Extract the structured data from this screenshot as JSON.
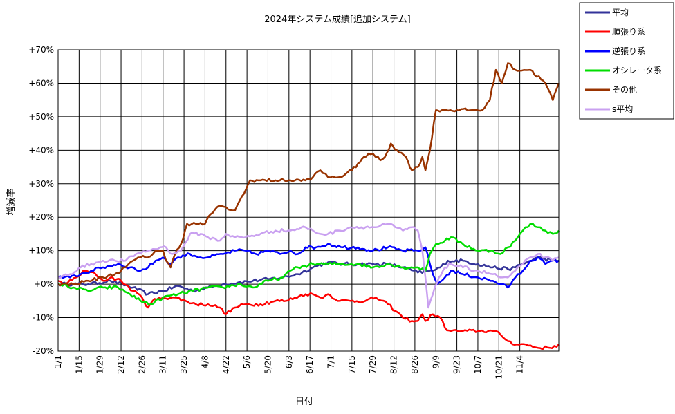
{
  "chart_data": {
    "type": "line",
    "title": "2024年システム成績[追加システム]",
    "xlabel": "日付",
    "ylabel": "増減率",
    "ylim": [
      -20,
      70
    ],
    "y_ticks": [
      "-20%",
      "-10%",
      "+0%",
      "+10%",
      "+20%",
      "+30%",
      "+40%",
      "+50%",
      "+60%",
      "+70%"
    ],
    "x_ticks": [
      "1/1",
      "1/15",
      "1/29",
      "2/12",
      "2/26",
      "3/11",
      "3/25",
      "4/8",
      "4/22",
      "5/6",
      "5/20",
      "6/3",
      "6/17",
      "7/1",
      "7/15",
      "7/29",
      "8/12",
      "8/26",
      "9/9",
      "9/23",
      "10/7",
      "10/21",
      "11/4"
    ],
    "x_range_days": [
      0,
      334
    ],
    "grid": true,
    "legend_position": "right-top",
    "series": [
      {
        "name": "平均",
        "color": "#333399",
        "points": [
          [
            0,
            0
          ],
          [
            10,
            0
          ],
          [
            20,
            0
          ],
          [
            35,
            1
          ],
          [
            50,
            -1
          ],
          [
            60,
            -3
          ],
          [
            70,
            -2
          ],
          [
            80,
            -0.5
          ],
          [
            90,
            -2
          ],
          [
            100,
            -1
          ],
          [
            110,
            0
          ],
          [
            120,
            0.5
          ],
          [
            130,
            1
          ],
          [
            140,
            1.5
          ],
          [
            150,
            2
          ],
          [
            160,
            3
          ],
          [
            170,
            5
          ],
          [
            180,
            6.5
          ],
          [
            190,
            6
          ],
          [
            200,
            6
          ],
          [
            210,
            6
          ],
          [
            220,
            6
          ],
          [
            230,
            5
          ],
          [
            240,
            3.5
          ],
          [
            250,
            4
          ],
          [
            255,
            5
          ],
          [
            260,
            7
          ],
          [
            270,
            7
          ],
          [
            280,
            6
          ],
          [
            290,
            5
          ],
          [
            300,
            4.5
          ],
          [
            305,
            5
          ],
          [
            310,
            6
          ],
          [
            320,
            8
          ],
          [
            330,
            7
          ],
          [
            334,
            7
          ]
        ]
      },
      {
        "name": "順張り系",
        "color": "#ff0000",
        "points": [
          [
            0,
            1
          ],
          [
            5,
            0
          ],
          [
            12,
            2
          ],
          [
            18,
            4
          ],
          [
            25,
            3
          ],
          [
            30,
            1
          ],
          [
            35,
            2
          ],
          [
            42,
            1
          ],
          [
            50,
            -2
          ],
          [
            56,
            -4
          ],
          [
            60,
            -7
          ],
          [
            63,
            -5
          ],
          [
            70,
            -4
          ],
          [
            78,
            -4
          ],
          [
            85,
            -5
          ],
          [
            92,
            -6
          ],
          [
            100,
            -6
          ],
          [
            108,
            -7
          ],
          [
            112,
            -9
          ],
          [
            118,
            -7
          ],
          [
            125,
            -6
          ],
          [
            135,
            -6
          ],
          [
            145,
            -5
          ],
          [
            152,
            -5
          ],
          [
            158,
            -4
          ],
          [
            165,
            -3
          ],
          [
            170,
            -3
          ],
          [
            175,
            -4
          ],
          [
            180,
            -3
          ],
          [
            188,
            -5
          ],
          [
            195,
            -5
          ],
          [
            205,
            -5
          ],
          [
            212,
            -4
          ],
          [
            220,
            -6
          ],
          [
            225,
            -8
          ],
          [
            230,
            -10
          ],
          [
            236,
            -11
          ],
          [
            240,
            -11
          ],
          [
            243,
            -9
          ],
          [
            245,
            -11
          ],
          [
            250,
            -9
          ],
          [
            255,
            -10
          ],
          [
            258,
            -13
          ],
          [
            262,
            -14
          ],
          [
            270,
            -14
          ],
          [
            280,
            -14
          ],
          [
            290,
            -14
          ],
          [
            295,
            -15
          ],
          [
            300,
            -17
          ],
          [
            306,
            -18
          ],
          [
            312,
            -18
          ],
          [
            320,
            -19
          ],
          [
            328,
            -19
          ],
          [
            334,
            -18
          ]
        ]
      },
      {
        "name": "逆張り系",
        "color": "#0000ff",
        "points": [
          [
            0,
            2
          ],
          [
            8,
            2
          ],
          [
            15,
            3
          ],
          [
            22,
            4
          ],
          [
            30,
            5
          ],
          [
            40,
            6
          ],
          [
            48,
            5
          ],
          [
            55,
            4
          ],
          [
            60,
            5
          ],
          [
            65,
            7
          ],
          [
            70,
            8
          ],
          [
            75,
            6
          ],
          [
            80,
            8
          ],
          [
            88,
            9
          ],
          [
            95,
            8
          ],
          [
            100,
            8
          ],
          [
            110,
            9
          ],
          [
            118,
            10
          ],
          [
            125,
            10
          ],
          [
            132,
            9
          ],
          [
            140,
            10
          ],
          [
            148,
            9
          ],
          [
            155,
            10
          ],
          [
            160,
            9
          ],
          [
            165,
            11
          ],
          [
            172,
            11
          ],
          [
            180,
            12
          ],
          [
            190,
            11
          ],
          [
            200,
            11
          ],
          [
            210,
            10
          ],
          [
            220,
            11
          ],
          [
            230,
            10
          ],
          [
            240,
            10
          ],
          [
            245,
            11
          ],
          [
            248,
            6
          ],
          [
            250,
            3
          ],
          [
            253,
            0
          ],
          [
            258,
            2
          ],
          [
            262,
            4
          ],
          [
            270,
            3
          ],
          [
            280,
            2
          ],
          [
            290,
            1
          ],
          [
            295,
            0
          ],
          [
            300,
            -1
          ],
          [
            305,
            2
          ],
          [
            310,
            4
          ],
          [
            315,
            7
          ],
          [
            320,
            8
          ],
          [
            325,
            6
          ],
          [
            330,
            7
          ],
          [
            334,
            7
          ]
        ]
      },
      {
        "name": "オシレータ系",
        "color": "#00dd00",
        "points": [
          [
            0,
            0
          ],
          [
            10,
            -1
          ],
          [
            20,
            -2
          ],
          [
            30,
            -1
          ],
          [
            40,
            -1
          ],
          [
            48,
            -3
          ],
          [
            55,
            -5
          ],
          [
            62,
            -6
          ],
          [
            70,
            -4
          ],
          [
            80,
            -3
          ],
          [
            90,
            -2
          ],
          [
            100,
            -1
          ],
          [
            110,
            -1
          ],
          [
            120,
            0
          ],
          [
            130,
            -1
          ],
          [
            140,
            1
          ],
          [
            150,
            2
          ],
          [
            155,
            4
          ],
          [
            160,
            5
          ],
          [
            170,
            6
          ],
          [
            180,
            6
          ],
          [
            190,
            6
          ],
          [
            200,
            6
          ],
          [
            210,
            5
          ],
          [
            220,
            6
          ],
          [
            230,
            5
          ],
          [
            240,
            5
          ],
          [
            245,
            4
          ],
          [
            248,
            9
          ],
          [
            252,
            12
          ],
          [
            258,
            13
          ],
          [
            262,
            14
          ],
          [
            270,
            12
          ],
          [
            280,
            10
          ],
          [
            290,
            10
          ],
          [
            295,
            9
          ],
          [
            300,
            11
          ],
          [
            305,
            13
          ],
          [
            310,
            16
          ],
          [
            315,
            18
          ],
          [
            320,
            17
          ],
          [
            325,
            16
          ],
          [
            330,
            15
          ],
          [
            334,
            16
          ]
        ]
      },
      {
        "name": "その他",
        "color": "#993300",
        "points": [
          [
            0,
            0
          ],
          [
            10,
            0
          ],
          [
            20,
            1
          ],
          [
            30,
            2
          ],
          [
            38,
            3
          ],
          [
            45,
            5
          ],
          [
            50,
            7
          ],
          [
            55,
            8
          ],
          [
            60,
            8
          ],
          [
            65,
            10
          ],
          [
            70,
            10
          ],
          [
            72,
            7
          ],
          [
            75,
            5
          ],
          [
            78,
            9
          ],
          [
            82,
            12
          ],
          [
            86,
            18
          ],
          [
            92,
            18
          ],
          [
            98,
            18
          ],
          [
            102,
            21
          ],
          [
            106,
            23
          ],
          [
            112,
            23
          ],
          [
            116,
            22
          ],
          [
            118,
            22
          ],
          [
            120,
            24
          ],
          [
            124,
            27
          ],
          [
            128,
            31
          ],
          [
            135,
            31
          ],
          [
            145,
            31
          ],
          [
            155,
            31
          ],
          [
            165,
            31
          ],
          [
            170,
            32
          ],
          [
            175,
            34
          ],
          [
            180,
            32
          ],
          [
            188,
            32
          ],
          [
            192,
            33
          ],
          [
            196,
            34
          ],
          [
            200,
            36
          ],
          [
            204,
            38
          ],
          [
            210,
            39
          ],
          [
            215,
            37
          ],
          [
            218,
            38
          ],
          [
            222,
            42
          ],
          [
            226,
            40
          ],
          [
            232,
            38
          ],
          [
            236,
            34
          ],
          [
            240,
            35
          ],
          [
            243,
            38
          ],
          [
            245,
            34
          ],
          [
            248,
            40
          ],
          [
            252,
            52
          ],
          [
            256,
            52
          ],
          [
            266,
            52
          ],
          [
            276,
            52
          ],
          [
            283,
            52
          ],
          [
            288,
            55
          ],
          [
            292,
            64
          ],
          [
            296,
            60
          ],
          [
            300,
            66
          ],
          [
            305,
            64
          ],
          [
            315,
            64
          ],
          [
            325,
            60
          ],
          [
            330,
            55
          ],
          [
            334,
            60
          ]
        ]
      },
      {
        "name": "s平均",
        "color": "#c9a0f0",
        "points": [
          [
            0,
            2
          ],
          [
            8,
            3
          ],
          [
            15,
            5
          ],
          [
            22,
            6
          ],
          [
            30,
            7
          ],
          [
            38,
            7
          ],
          [
            45,
            7
          ],
          [
            52,
            9
          ],
          [
            60,
            10
          ],
          [
            68,
            11
          ],
          [
            72,
            11
          ],
          [
            76,
            9
          ],
          [
            82,
            10
          ],
          [
            88,
            15
          ],
          [
            95,
            15
          ],
          [
            100,
            14
          ],
          [
            108,
            13
          ],
          [
            112,
            15
          ],
          [
            118,
            14
          ],
          [
            125,
            14
          ],
          [
            135,
            15
          ],
          [
            145,
            16
          ],
          [
            155,
            16
          ],
          [
            165,
            17
          ],
          [
            170,
            16
          ],
          [
            175,
            15
          ],
          [
            180,
            15
          ],
          [
            188,
            16
          ],
          [
            195,
            17
          ],
          [
            205,
            17
          ],
          [
            212,
            17
          ],
          [
            220,
            18
          ],
          [
            225,
            17
          ],
          [
            230,
            16
          ],
          [
            236,
            17
          ],
          [
            240,
            16
          ],
          [
            243,
            10
          ],
          [
            245,
            2
          ],
          [
            247,
            -7
          ],
          [
            250,
            -3
          ],
          [
            254,
            2
          ],
          [
            258,
            5
          ],
          [
            262,
            6
          ],
          [
            270,
            5
          ],
          [
            280,
            4
          ],
          [
            290,
            3
          ],
          [
            295,
            2
          ],
          [
            300,
            2
          ],
          [
            305,
            4
          ],
          [
            310,
            6
          ],
          [
            315,
            8
          ],
          [
            320,
            9
          ],
          [
            325,
            8
          ],
          [
            330,
            7
          ],
          [
            334,
            8
          ]
        ]
      }
    ]
  }
}
